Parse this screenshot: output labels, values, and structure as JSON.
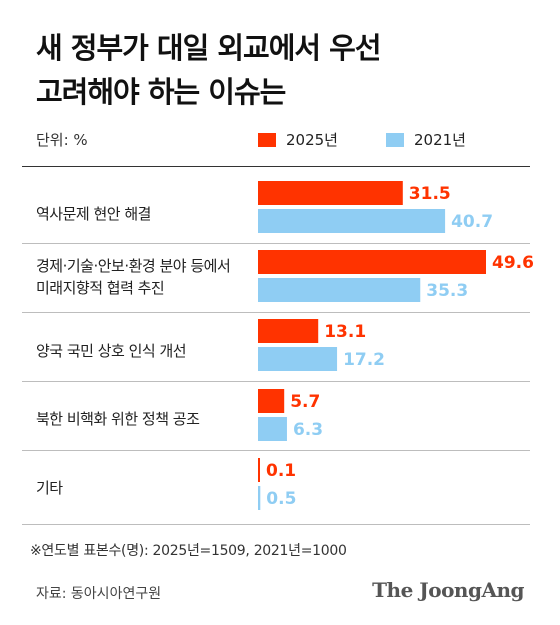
{
  "title_lines": [
    "새 정부가 대일 외교에서 우선",
    "고려해야 하는 이슈는"
  ],
  "unit_label": "단위: %",
  "note": "※연도별 표본수(명): 2025년=1509, 2021년=1000",
  "source": "자료: 동아시아연구원",
  "brand": "The JoongAng",
  "colors": {
    "series_2025": "#ff3300",
    "series_2021": "#8fcdf3",
    "label_2025": "#ff3300",
    "label_2021": "#8fcdf3"
  },
  "chart_data": {
    "type": "bar",
    "orientation": "horizontal",
    "categories": [
      [
        "역사문제 현안 해결"
      ],
      [
        "경제·기술·안보·환경 분야 등에서",
        "미래지향적 협력 추진"
      ],
      [
        "양국 국민 상호 인식 개선"
      ],
      [
        "북한 비핵화 위한 정책 공조"
      ],
      [
        "기타"
      ]
    ],
    "series": [
      {
        "name": "2025년",
        "values": [
          31.5,
          49.6,
          13.1,
          5.7,
          0.1
        ],
        "labels": [
          "31.5",
          "49.6",
          "13.1",
          "5.7",
          "0.1"
        ]
      },
      {
        "name": "2021년",
        "values": [
          40.7,
          35.3,
          17.2,
          6.3,
          0.5
        ],
        "labels": [
          "40.7",
          "35.3",
          "17.2",
          "6.3",
          "0.5"
        ]
      }
    ],
    "xlim": [
      0,
      49.6
    ],
    "grid": false,
    "legend_position": "top"
  }
}
